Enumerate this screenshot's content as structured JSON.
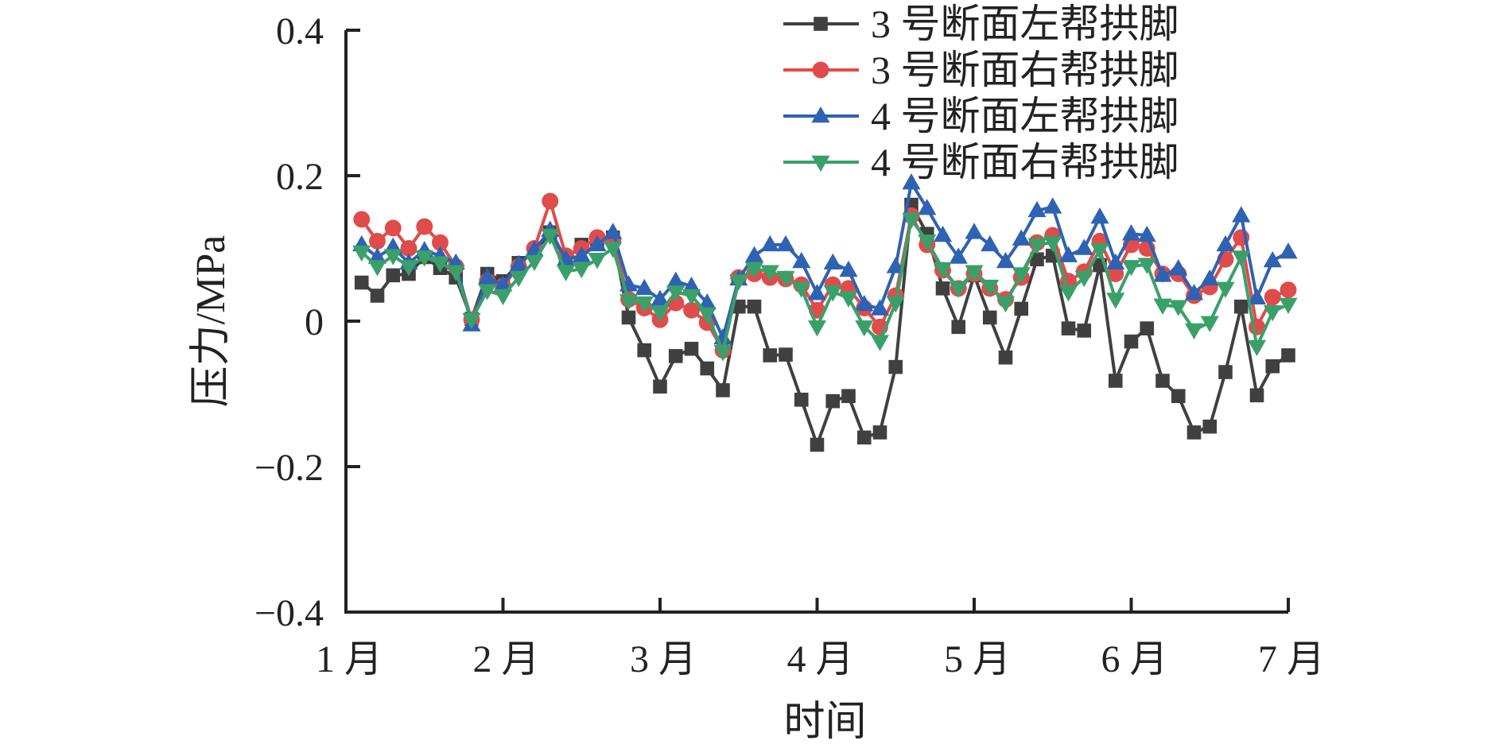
{
  "chart_data": {
    "type": "line",
    "xlabel": "时间",
    "ylabel": "压力/MPa",
    "ylim": [
      -0.4,
      0.4
    ],
    "yticks": [
      -0.4,
      -0.2,
      0,
      0.2,
      0.4
    ],
    "ytick_labels": [
      "−0.4",
      "−0.2",
      "0",
      "0.2",
      "0.4"
    ],
    "xlim": [
      0,
      6
    ],
    "xticks": [
      0,
      1,
      2,
      3,
      4,
      5,
      6
    ],
    "xtick_labels": [
      "1 月",
      "2 月",
      "3 月",
      "4 月",
      "5 月",
      "6 月",
      "7 月"
    ],
    "grid": false,
    "legend_position": "top-right",
    "x": [
      0.1,
      0.2,
      0.3,
      0.4,
      0.5,
      0.6,
      0.7,
      0.8,
      0.9,
      1.0,
      1.1,
      1.2,
      1.3,
      1.4,
      1.5,
      1.6,
      1.7,
      1.8,
      1.9,
      2.0,
      2.1,
      2.2,
      2.3,
      2.4,
      2.5,
      2.6,
      2.7,
      2.8,
      2.9,
      3.0,
      3.1,
      3.2,
      3.3,
      3.4,
      3.5,
      3.6,
      3.7,
      3.8,
      3.9,
      4.0,
      4.1,
      4.2,
      4.3,
      4.4,
      4.5,
      4.6,
      4.7,
      4.8,
      4.9,
      5.0,
      5.1,
      5.2,
      5.3,
      5.4,
      5.5,
      5.6,
      5.7,
      5.8,
      5.9,
      6.0
    ],
    "series": [
      {
        "name": "3 号断面左帮拱脚",
        "color": "#404040",
        "marker": "square",
        "values": [
          0.053,
          0.035,
          0.063,
          0.065,
          0.088,
          0.073,
          0.06,
          0.003,
          0.065,
          0.055,
          0.08,
          0.095,
          0.122,
          0.085,
          0.105,
          0.11,
          0.115,
          0.005,
          -0.04,
          -0.09,
          -0.048,
          -0.038,
          -0.065,
          -0.095,
          0.02,
          0.02,
          -0.047,
          -0.046,
          -0.108,
          -0.17,
          -0.11,
          -0.103,
          -0.16,
          -0.153,
          -0.063,
          0.16,
          0.12,
          0.045,
          -0.008,
          0.063,
          0.005,
          -0.05,
          0.017,
          0.085,
          0.09,
          -0.01,
          -0.013,
          0.077,
          -0.082,
          -0.028,
          -0.01,
          -0.082,
          -0.103,
          -0.153,
          -0.145,
          -0.07,
          0.02,
          -0.102,
          -0.062,
          -0.047
        ]
      },
      {
        "name": "3 号断面右帮拱脚",
        "color": "#e04b4b",
        "marker": "circle",
        "values": [
          0.14,
          0.11,
          0.128,
          0.1,
          0.13,
          0.108,
          0.075,
          0.002,
          0.055,
          0.048,
          0.075,
          0.1,
          0.165,
          0.09,
          0.1,
          0.115,
          0.112,
          0.03,
          0.018,
          0.002,
          0.025,
          0.015,
          -0.002,
          -0.04,
          0.06,
          0.065,
          0.06,
          0.058,
          0.05,
          0.015,
          0.05,
          0.045,
          0.018,
          -0.008,
          0.035,
          0.145,
          0.105,
          0.07,
          0.045,
          0.065,
          0.045,
          0.03,
          0.06,
          0.108,
          0.118,
          0.055,
          0.068,
          0.11,
          0.065,
          0.105,
          0.1,
          0.065,
          0.065,
          0.035,
          0.047,
          0.085,
          0.115,
          -0.008,
          0.033,
          0.043
        ]
      },
      {
        "name": "4 号断面左帮拱脚",
        "color": "#2e62b3",
        "marker": "triangle-up",
        "values": [
          0.105,
          0.088,
          0.102,
          0.08,
          0.097,
          0.09,
          0.08,
          -0.005,
          0.06,
          0.05,
          0.078,
          0.098,
          0.125,
          0.085,
          0.09,
          0.105,
          0.122,
          0.05,
          0.045,
          0.03,
          0.055,
          0.048,
          0.025,
          -0.023,
          0.058,
          0.09,
          0.105,
          0.105,
          0.082,
          0.038,
          0.08,
          0.07,
          0.023,
          0.017,
          0.075,
          0.19,
          0.155,
          0.118,
          0.088,
          0.122,
          0.105,
          0.082,
          0.113,
          0.152,
          0.157,
          0.09,
          0.1,
          0.143,
          0.08,
          0.12,
          0.118,
          0.063,
          0.072,
          0.038,
          0.058,
          0.105,
          0.145,
          0.032,
          0.083,
          0.095
        ]
      },
      {
        "name": "4 号断面右帮拱脚",
        "color": "#3aa06a",
        "marker": "triangle-down",
        "values": [
          0.095,
          0.075,
          0.09,
          0.075,
          0.088,
          0.08,
          0.068,
          0.002,
          0.042,
          0.035,
          0.06,
          0.082,
          0.118,
          0.068,
          0.072,
          0.085,
          0.1,
          0.028,
          0.025,
          0.012,
          0.04,
          0.035,
          0.01,
          -0.042,
          0.055,
          0.072,
          0.068,
          0.06,
          0.045,
          -0.008,
          0.04,
          0.032,
          -0.008,
          -0.028,
          0.025,
          0.14,
          0.11,
          0.072,
          0.045,
          0.068,
          0.048,
          0.025,
          0.065,
          0.105,
          0.108,
          0.04,
          0.06,
          0.098,
          0.03,
          0.075,
          0.078,
          0.022,
          0.02,
          -0.012,
          -0.002,
          0.045,
          0.088,
          -0.035,
          0.013,
          0.023
        ]
      }
    ]
  }
}
